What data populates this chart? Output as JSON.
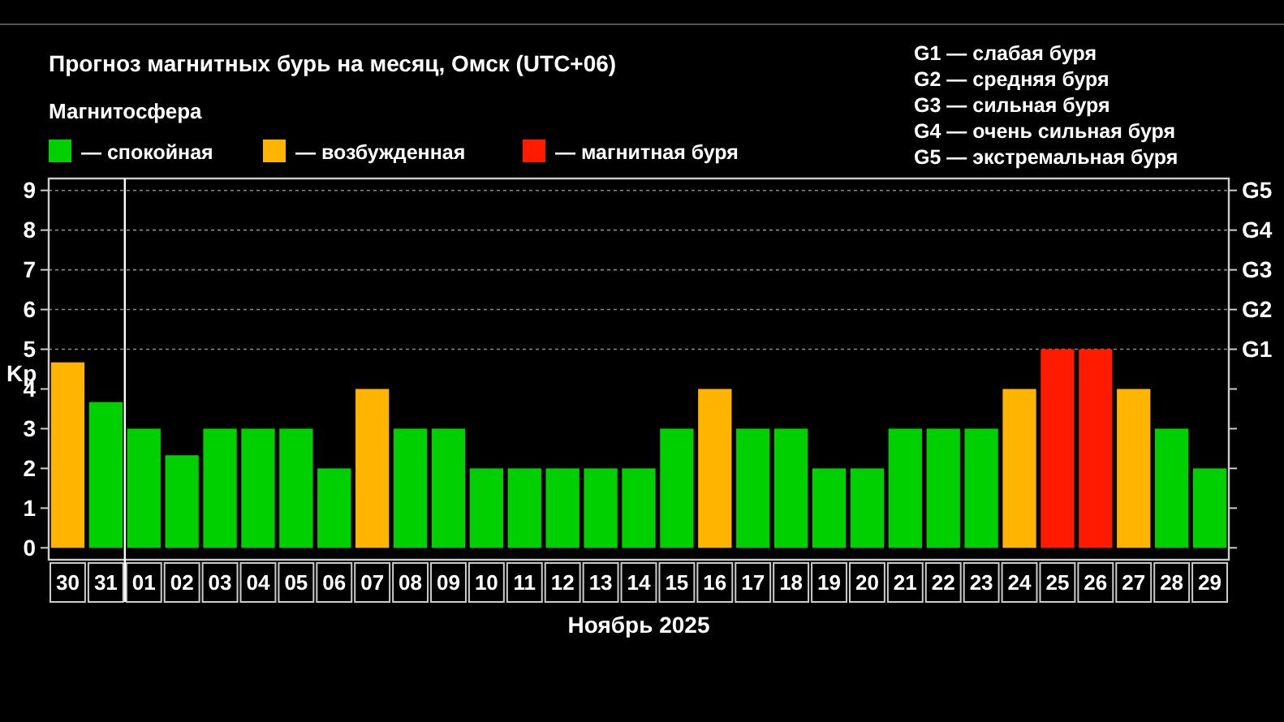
{
  "chart_data": {
    "type": "bar",
    "title": "Прогноз магнитных бурь на месяц, Омск (UTC+06)",
    "legend_title": "Магнитосфера",
    "xlabel": "Ноябрь 2025",
    "ylabel": "Kp",
    "categories": [
      "30",
      "31",
      "01",
      "02",
      "03",
      "04",
      "05",
      "06",
      "07",
      "08",
      "09",
      "10",
      "11",
      "12",
      "13",
      "14",
      "15",
      "16",
      "17",
      "18",
      "19",
      "20",
      "21",
      "22",
      "23",
      "24",
      "25",
      "26",
      "27",
      "28",
      "29"
    ],
    "legend": "top left",
    "series": [
      {
        "name": "— спокойная",
        "color": "#00d000",
        "values": [
          null,
          3.67,
          3,
          2.33,
          3,
          3,
          3,
          2,
          null,
          3,
          3,
          2,
          2,
          2,
          2,
          2,
          3,
          null,
          3,
          3,
          2,
          2,
          3,
          3,
          3,
          null,
          null,
          null,
          null,
          3,
          2
        ]
      },
      {
        "name": "— возбужденная",
        "color": "#ffb400",
        "values": [
          4.67,
          null,
          null,
          null,
          null,
          null,
          null,
          null,
          4,
          null,
          null,
          null,
          null,
          null,
          null,
          null,
          null,
          4,
          null,
          null,
          null,
          null,
          null,
          null,
          null,
          4,
          null,
          null,
          4,
          null,
          null
        ]
      },
      {
        "name": "— магнитная буря",
        "color": "#ff1a00",
        "values": [
          null,
          null,
          null,
          null,
          null,
          null,
          null,
          null,
          null,
          null,
          null,
          null,
          null,
          null,
          null,
          null,
          null,
          null,
          null,
          null,
          null,
          null,
          null,
          null,
          null,
          null,
          5,
          5,
          null,
          null,
          null
        ]
      }
    ],
    "ylim": [
      -0.3,
      9.3
    ],
    "yticks": [
      0,
      1,
      2,
      3,
      4,
      5,
      6,
      7,
      8,
      9
    ],
    "ref_lines": [
      {
        "axis": "x",
        "value": "01",
        "label": null,
        "color": "#ffffff"
      },
      {
        "axis": "y",
        "value": 5,
        "label": "G1",
        "color": "#888888",
        "line_style": "dotted"
      },
      {
        "axis": "y",
        "value": 6,
        "label": "G2",
        "color": "#888888",
        "line_style": "dotted"
      },
      {
        "axis": "y",
        "value": 7,
        "label": "G3",
        "color": "#888888",
        "line_style": "dotted"
      },
      {
        "axis": "y",
        "value": 8,
        "label": "G4",
        "color": "#888888",
        "line_style": "dotted"
      },
      {
        "axis": "y",
        "value": 9,
        "label": "G5",
        "color": "#888888",
        "line_style": "dotted"
      }
    ],
    "annotations": [
      "G1 — слабая буря",
      "G2 — средняя буря",
      "G3 — сильная буря",
      "G4 — очень сильная буря",
      "G5 — экстремальная буря"
    ]
  }
}
